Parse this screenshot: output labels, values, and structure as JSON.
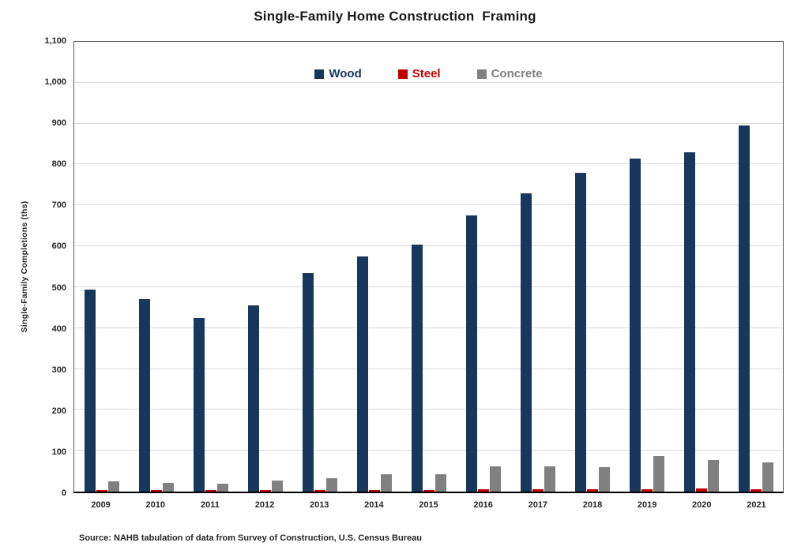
{
  "title": "Single-Family Home Construction  Framing",
  "source_note": "Source: NAHB tabulation of data from Survey of Construction, U.S. Census Bureau",
  "colors": {
    "wood": "#17375D",
    "steel": "#C00000",
    "concrete": "#808080",
    "gridline": "#D9D9D9",
    "plot_border": "#595959",
    "axis_line": "#000000"
  },
  "chart_data": {
    "type": "bar",
    "title": "Single-Family Home Construction  Framing",
    "xlabel": "",
    "ylabel": "Single-Family Completions (ths)",
    "ylim": [
      0,
      1100
    ],
    "grid": true,
    "legend_position": "top-center",
    "yticks": [
      {
        "label": "0",
        "value": 0
      },
      {
        "label": "100",
        "value": 100
      },
      {
        "label": "200",
        "value": 200
      },
      {
        "label": "300",
        "value": 300
      },
      {
        "label": "400",
        "value": 400
      },
      {
        "label": "500",
        "value": 500
      },
      {
        "label": "600",
        "value": 600
      },
      {
        "label": "700",
        "value": 700
      },
      {
        "label": "800",
        "value": 800
      },
      {
        "label": "900",
        "value": 900
      },
      {
        "label": "1,000",
        "value": 1000
      },
      {
        "label": "1,100",
        "value": 1100
      }
    ],
    "categories": [
      "2009",
      "2010",
      "2011",
      "2012",
      "2013",
      "2014",
      "2015",
      "2016",
      "2017",
      "2018",
      "2019",
      "2020",
      "2021"
    ],
    "series": [
      {
        "name": "Wood",
        "color": "#17375D",
        "values": [
          495,
          470,
          425,
          455,
          535,
          575,
          605,
          675,
          730,
          780,
          815,
          830,
          895
        ]
      },
      {
        "name": "Steel",
        "color": "#C00000",
        "values": [
          3,
          4,
          4,
          4,
          4,
          4,
          4,
          5,
          5,
          5,
          5,
          8,
          5
        ]
      },
      {
        "name": "Concrete",
        "color": "#808080",
        "values": [
          25,
          22,
          20,
          27,
          33,
          43,
          43,
          62,
          62,
          60,
          87,
          77,
          72
        ]
      }
    ]
  }
}
